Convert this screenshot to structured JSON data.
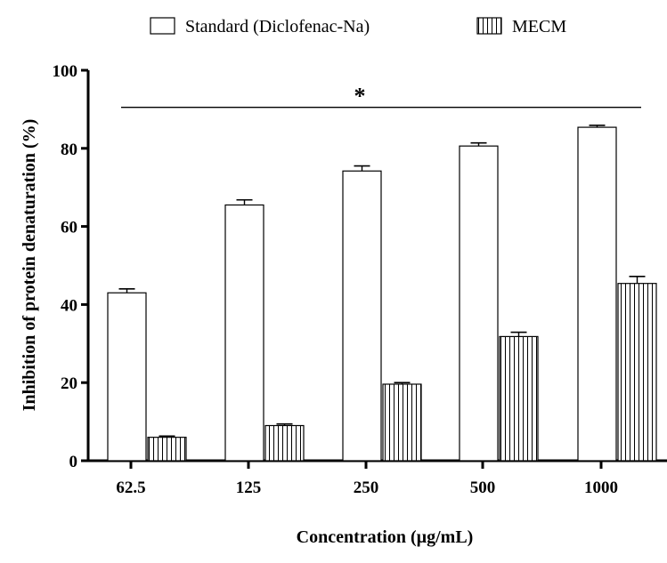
{
  "chart_data": {
    "type": "bar",
    "title": "",
    "xlabel": "Concentration (µg/mL)",
    "ylabel": "Inhibition of protein denaturation (%)",
    "categories": [
      "62.5",
      "125",
      "250",
      "500",
      "1000"
    ],
    "ylim": [
      0,
      100
    ],
    "yticks": [
      0,
      20,
      40,
      60,
      80,
      100
    ],
    "ytick_labels": [
      "0",
      "20",
      "40",
      "60",
      "80",
      "100"
    ],
    "grid": false,
    "legend_position": "top",
    "series": [
      {
        "name": "Standard (Diclofenac-Na)",
        "fill": "white",
        "values": [
          43.0,
          65.5,
          74.2,
          80.6,
          85.4
        ],
        "errors": [
          1.0,
          1.3,
          1.3,
          0.8,
          0.5
        ]
      },
      {
        "name": "MECM",
        "fill": "vertical-hatch",
        "values": [
          6.0,
          9.0,
          19.6,
          31.8,
          45.4
        ],
        "errors": [
          0.3,
          0.4,
          0.4,
          1.1,
          1.8
        ]
      }
    ],
    "annotation": {
      "text": "*",
      "type": "significance-line",
      "y": 90.5
    },
    "colors": {
      "stroke": "#000000",
      "bar_fill": "#ffffff"
    }
  }
}
